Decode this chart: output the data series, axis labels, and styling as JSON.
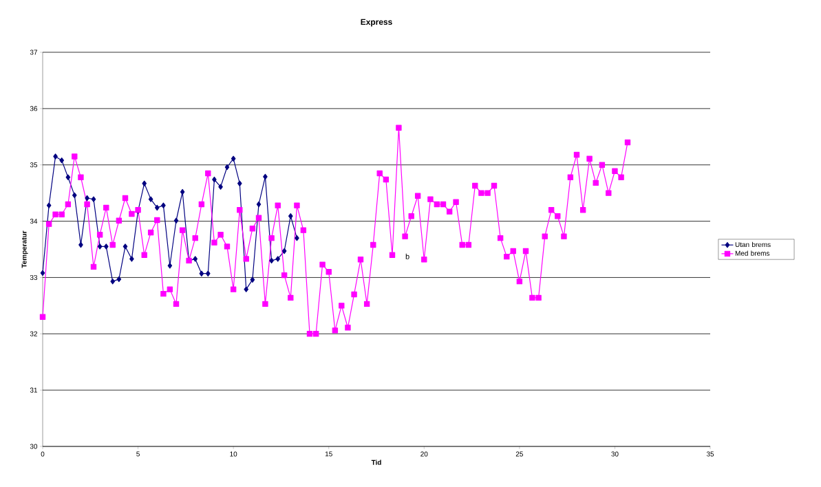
{
  "chart_data": {
    "type": "line",
    "title": "Express",
    "xlabel": "Tid",
    "ylabel": "Temperatur",
    "xlim": [
      0,
      35
    ],
    "xticks": [
      0,
      5,
      10,
      15,
      20,
      25,
      30,
      35
    ],
    "ylim": [
      30,
      37
    ],
    "yticks": [
      30,
      31,
      32,
      33,
      34,
      35,
      36,
      37
    ],
    "grid": "y",
    "legend": "right",
    "annotations": [
      "b"
    ],
    "series": [
      {
        "name": "Utan brems",
        "color": "#000080",
        "marker": "diamond",
        "x": [
          0,
          0.33,
          0.67,
          1,
          1.33,
          1.67,
          2,
          2.33,
          2.67,
          3,
          3.33,
          3.67,
          4,
          4.33,
          4.67,
          5,
          5.33,
          5.67,
          6,
          6.33,
          6.67,
          7,
          7.33,
          7.67,
          8,
          8.33,
          8.67,
          9,
          9.33,
          9.67,
          10,
          10.33,
          10.67,
          11,
          11.33,
          11.67,
          12,
          12.33,
          12.67,
          13,
          13.33
        ],
        "values": [
          33.08,
          34.28,
          35.15,
          35.08,
          34.78,
          34.46,
          33.58,
          34.41,
          34.39,
          33.55,
          33.55,
          32.93,
          32.97,
          33.55,
          33.33,
          34.18,
          34.67,
          34.39,
          34.24,
          34.28,
          33.21,
          34.01,
          34.52,
          33.3,
          33.33,
          33.07,
          33.07,
          34.74,
          34.61,
          34.96,
          35.11,
          34.67,
          32.79,
          32.96,
          34.3,
          34.79,
          33.3,
          33.33,
          33.47,
          34.09,
          33.7
        ]
      },
      {
        "name": "Med brems",
        "color": "#ff00ff",
        "marker": "square",
        "x": [
          0,
          0.33,
          0.67,
          1,
          1.33,
          1.67,
          2,
          2.33,
          2.67,
          3,
          3.33,
          3.67,
          4,
          4.33,
          4.67,
          5,
          5.33,
          5.67,
          6,
          6.33,
          6.67,
          7,
          7.33,
          7.67,
          8,
          8.33,
          8.67,
          9,
          9.33,
          9.67,
          10,
          10.33,
          10.67,
          11,
          11.33,
          11.67,
          12,
          12.33,
          12.67,
          13,
          13.33,
          13.67,
          14,
          14.33,
          14.67,
          15,
          15.33,
          15.67,
          16,
          16.33,
          16.67,
          17,
          17.33,
          17.67,
          18,
          18.33,
          18.67,
          19,
          19.33,
          19.67,
          20,
          20.33,
          20.67,
          21,
          21.33,
          21.67,
          22,
          22.33,
          22.67,
          23,
          23.33,
          23.67,
          24,
          24.33,
          24.67,
          25,
          25.33,
          25.67,
          26,
          26.33,
          26.67,
          27,
          27.33,
          27.67,
          28,
          28.33,
          28.67,
          29,
          29.33,
          29.67,
          30,
          30.33,
          30.67
        ],
        "values": [
          32.3,
          33.95,
          34.12,
          34.12,
          34.3,
          35.15,
          34.78,
          34.3,
          33.19,
          33.76,
          34.24,
          33.58,
          34.01,
          34.41,
          34.13,
          34.2,
          33.4,
          33.8,
          34.02,
          32.71,
          32.79,
          32.53,
          33.84,
          33.3,
          33.7,
          34.3,
          34.85,
          33.62,
          33.76,
          33.55,
          32.79,
          34.2,
          33.33,
          33.87,
          34.06,
          32.53,
          33.7,
          34.28,
          33.04,
          32.64,
          34.28,
          33.84,
          32.0,
          32.0,
          33.23,
          33.1,
          32.06,
          32.5,
          32.11,
          32.7,
          33.32,
          32.53,
          33.58,
          34.85,
          34.74,
          33.4,
          35.66,
          33.73,
          34.09,
          34.45,
          33.32,
          34.39,
          34.3,
          34.3,
          34.17,
          34.34,
          33.58,
          33.58,
          34.63,
          34.5,
          34.5,
          34.63,
          33.7,
          33.37,
          33.47,
          32.93,
          33.47,
          32.64,
          32.64,
          33.73,
          34.2,
          34.09,
          33.73,
          34.78,
          35.18,
          34.2,
          35.11,
          34.68,
          35.0,
          34.5,
          34.89,
          34.78,
          35.4
        ]
      }
    ]
  }
}
